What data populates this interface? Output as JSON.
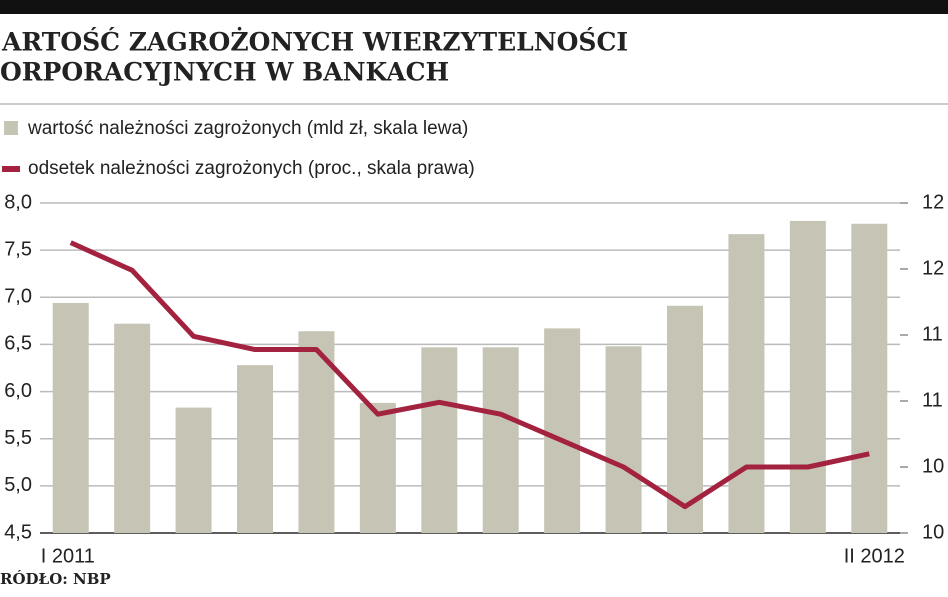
{
  "chart_data": {
    "type": "bar_line",
    "title_lines": [
      "ARTOŚĆ ZAGROŻONYCH WIERZYTELNOŚCI",
      "ORPORACYJNYCH W BANKACH"
    ],
    "categories": [
      "I 2011",
      null,
      null,
      null,
      null,
      null,
      null,
      null,
      null,
      null,
      null,
      null,
      null,
      "II 2012"
    ],
    "series": [
      {
        "name": "wartość należności zagrożonych (mld zł, skala lewa)",
        "color": "#c6c5b5",
        "type": "bar",
        "values": [
          6.94,
          6.72,
          5.83,
          6.28,
          6.64,
          5.88,
          6.47,
          6.47,
          6.67,
          6.48,
          6.91,
          7.67,
          7.81,
          7.78
        ]
      },
      {
        "name": "odsetek należności zagrożonych (proc., skala prawa)",
        "color": "#a3223f",
        "type": "line",
        "axis": "y2",
        "values": [
          12.2,
          11.99,
          11.49,
          11.39,
          11.39,
          10.9,
          10.99,
          10.9,
          10.7,
          10.5,
          10.2,
          10.5,
          10.5,
          10.6
        ]
      }
    ],
    "ylim": [
      4.5,
      8.0
    ],
    "yticks": [
      {
        "value": 4.5,
        "label": "4,5"
      },
      {
        "value": 5.0,
        "label": "5,0"
      },
      {
        "value": 5.5,
        "label": "5,5"
      },
      {
        "value": 6.0,
        "label": "6,0"
      },
      {
        "value": 6.5,
        "label": "6,5"
      },
      {
        "value": 7.0,
        "label": "7,0"
      },
      {
        "value": 7.5,
        "label": "7,5"
      },
      {
        "value": 8.0,
        "label": "8,0"
      }
    ],
    "y2lim": [
      10.0,
      12.5
    ],
    "y2ticks": [
      {
        "value": 10.0,
        "label": "10"
      },
      {
        "value": 10.5,
        "label": "10"
      },
      {
        "value": 11.0,
        "label": "11"
      },
      {
        "value": 11.5,
        "label": "11"
      },
      {
        "value": 12.0,
        "label": "12"
      },
      {
        "value": 12.5,
        "label": "12"
      }
    ],
    "grid": true,
    "source": "RÓDŁO: NBP"
  }
}
